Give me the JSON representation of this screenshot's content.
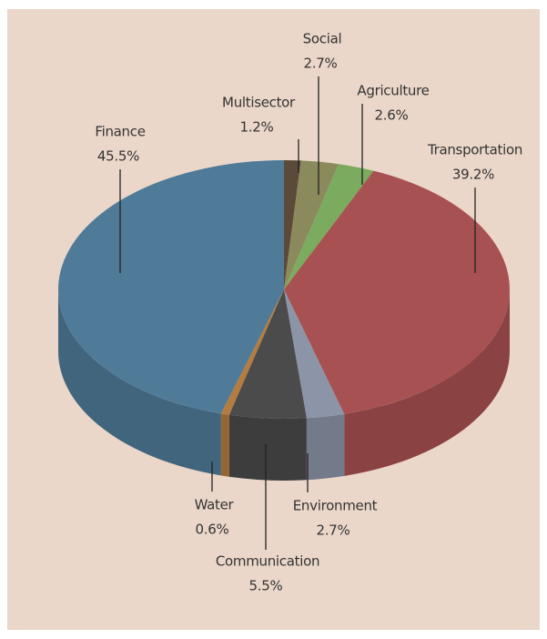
{
  "chart_data": {
    "type": "pie",
    "categories": [
      "Multisector",
      "Social",
      "Agriculture",
      "Transportation",
      "Environment",
      "Communication",
      "Water",
      "Finance"
    ],
    "values": [
      1.2,
      2.7,
      2.6,
      39.2,
      2.7,
      5.5,
      0.6,
      45.5
    ],
    "value_labels": [
      "1.2%",
      "2.7%",
      "2.6%",
      "39.2%",
      "2.7%",
      "5.5%",
      "0.6%",
      "45.5%"
    ],
    "colors": [
      "#5b4a3a",
      "#8b8a5c",
      "#7aab5e",
      "#a85152",
      "#8c95a8",
      "#4b4b4b",
      "#b47c3e",
      "#4f7b99"
    ]
  }
}
